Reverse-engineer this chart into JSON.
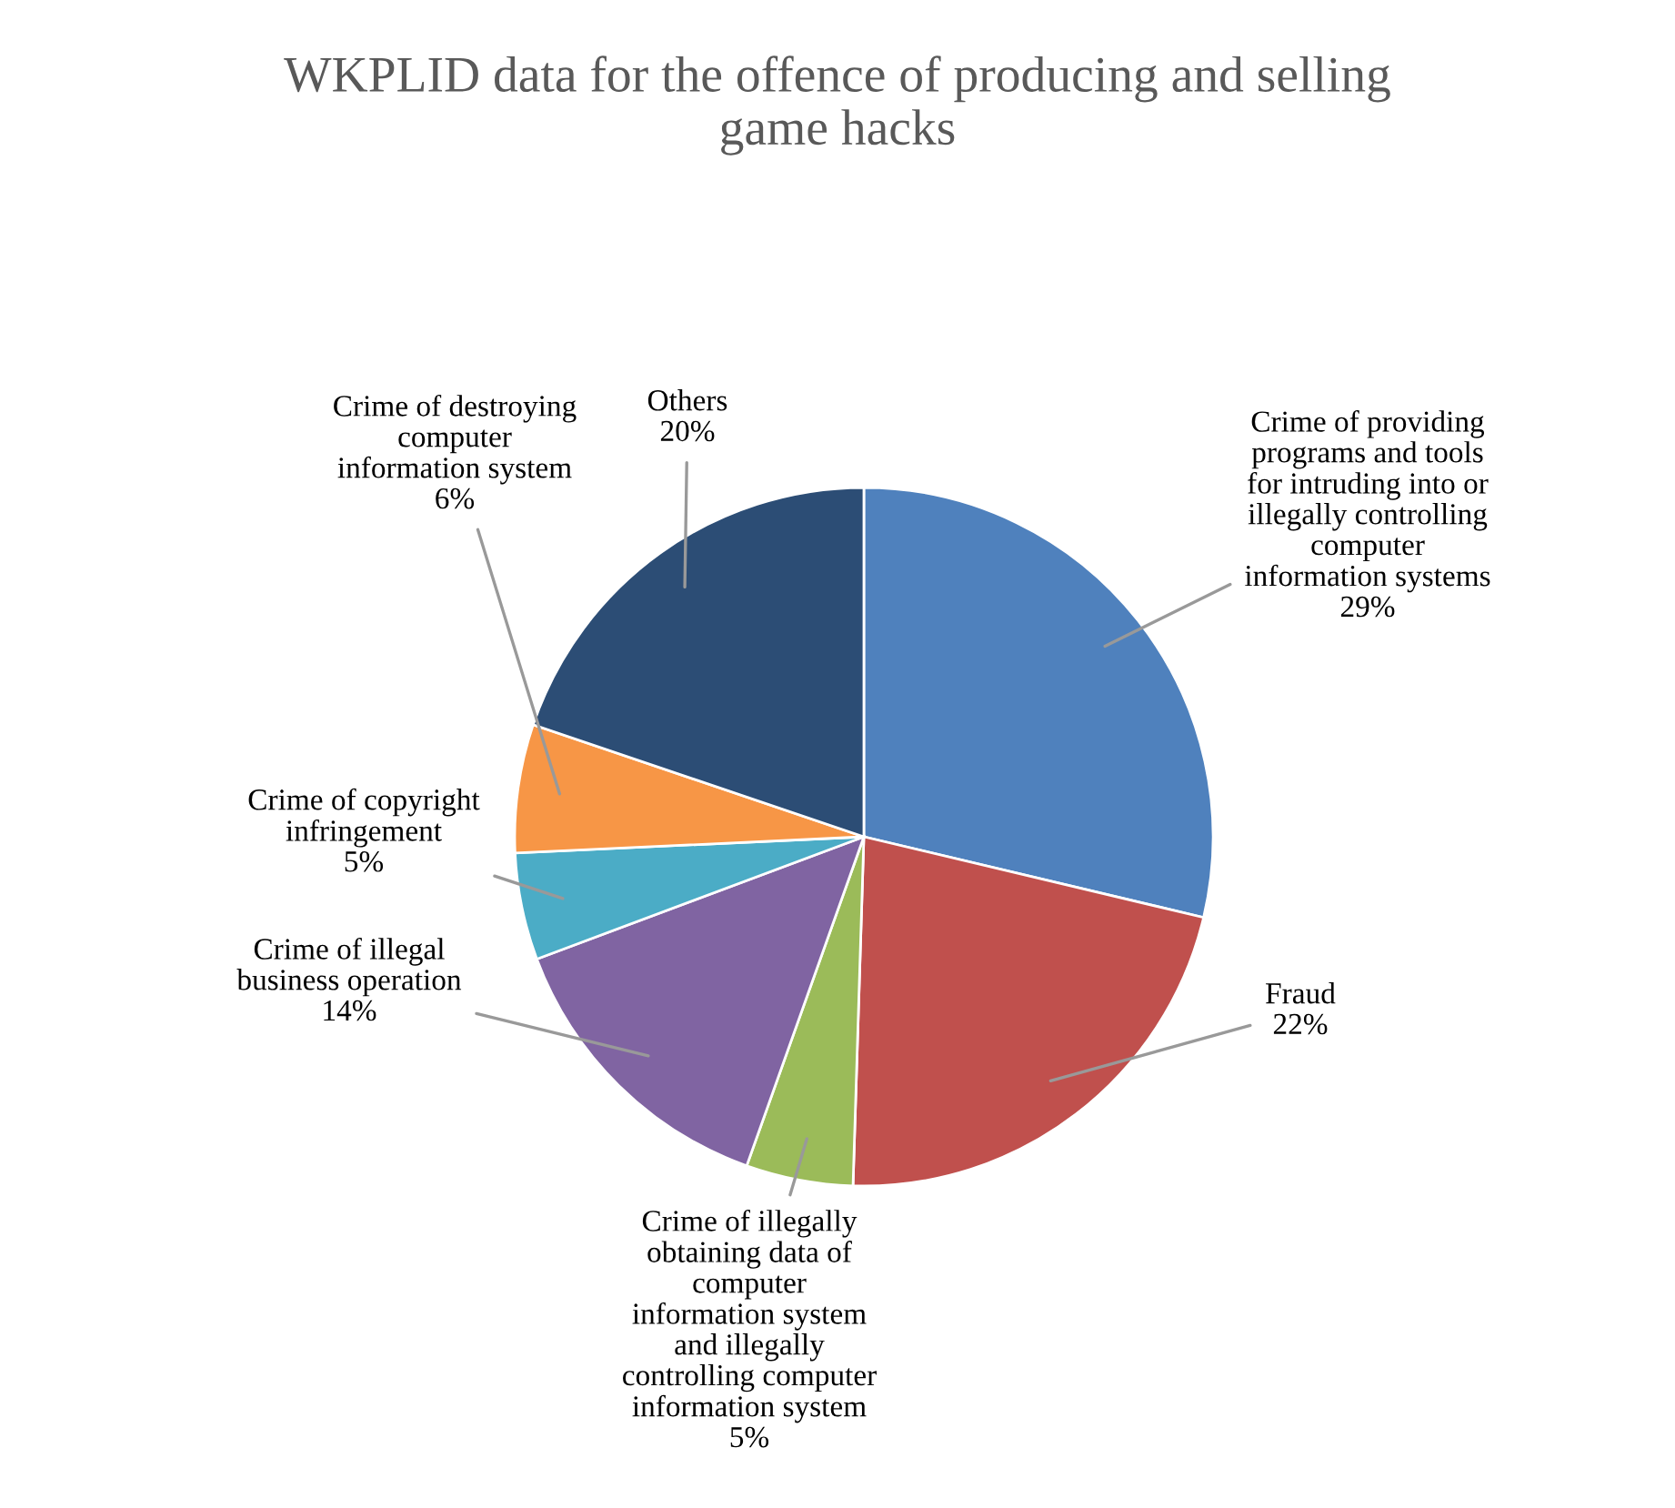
{
  "chart_data": {
    "type": "pie",
    "title": "WKPLID data for the offence of producing and selling\ngame hacks",
    "categories": [
      "Crime of providing\nprograms and tools\nfor intruding into or\nillegally controlling\ncomputer\ninformation systems",
      "Fraud",
      "Crime of illegally\nobtaining data of\ncomputer\ninformation system\nand illegally\ncontrolling computer\ninformation system",
      "Crime of illegal\nbusiness operation",
      "Crime of copyright\ninfringement",
      "Crime of destroying\ncomputer\ninformation system",
      "Others"
    ],
    "values": [
      29,
      22,
      5,
      14,
      5,
      6,
      20
    ],
    "value_labels": [
      "29%",
      "22%",
      "5%",
      "14%",
      "5%",
      "6%",
      "20%"
    ],
    "colors": [
      "#4f81bd",
      "#c0504d",
      "#9bbb59",
      "#8064a2",
      "#4bacc6",
      "#f79646",
      "#2c4d75"
    ],
    "legend": false
  }
}
